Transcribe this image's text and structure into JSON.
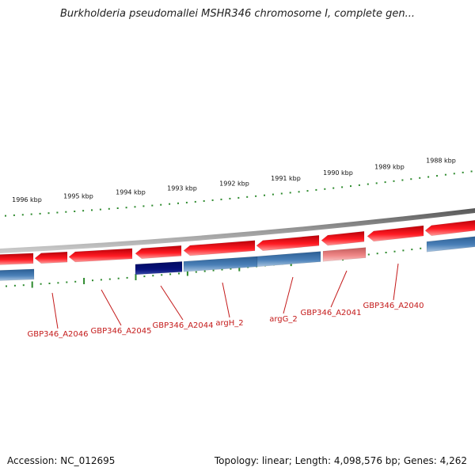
{
  "title": "Burkholderia pseudomallei MSHR346 chromosome I, complete gen...",
  "accession": "Accession: NC_012695",
  "summary": "Topology: linear; Length: 4,098,576 bp; Genes: 4,262",
  "colors": {
    "forward_gene": "#e8141c",
    "forward_gene_faded": "#e77a7a",
    "reverse_gene": "#3e72a8",
    "reverse_gene_selected": "#06107a",
    "tick": "#2d8a2d",
    "backbone": "#7a7a7a",
    "gene_label": "#c41a1a"
  },
  "scale_labels": [
    "1996 kbp",
    "1995 kbp",
    "1994 kbp",
    "1993 kbp",
    "1992 kbp",
    "1991 kbp",
    "1990 kbp",
    "1989 kbp",
    "1988 kbp"
  ],
  "gene_labels": [
    "GBP346_A2046",
    "GBP346_A2045",
    "GBP346_A2044",
    "argH_2",
    "argG_2",
    "GBP346_A2041",
    "GBP346_A2040"
  ]
}
